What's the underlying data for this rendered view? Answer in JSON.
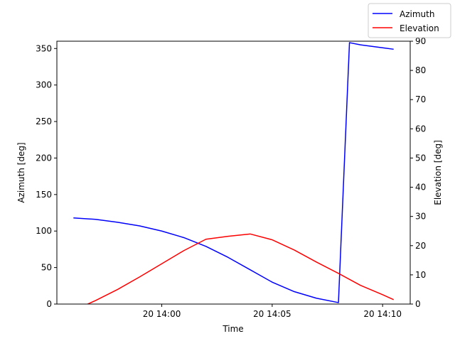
{
  "chart_data": {
    "type": "line",
    "title": "",
    "xlabel": "Time",
    "xlim": [
      "2000-01-20T13:55:15",
      "2000-01-20T14:11:15"
    ],
    "x_ticks": [
      {
        "t": "2000-01-20T14:00:00",
        "label": "20 14:00"
      },
      {
        "t": "2000-01-20T14:05:00",
        "label": "20 14:05"
      },
      {
        "t": "2000-01-20T14:10:00",
        "label": "20 14:10"
      }
    ],
    "y_left": {
      "label": "Azimuth [deg]",
      "lim": [
        0,
        360
      ],
      "ticks": [
        0,
        50,
        100,
        150,
        200,
        250,
        300,
        350
      ]
    },
    "y_right": {
      "label": "Elevation [deg]",
      "lim": [
        0,
        90
      ],
      "ticks": [
        0,
        10,
        20,
        30,
        40,
        50,
        60,
        70,
        80,
        90
      ]
    },
    "legend_position": "top-right (outside axes)",
    "series": [
      {
        "name": "Azimuth",
        "axis": "left",
        "color": "#0000ff",
        "points": [
          [
            "2000-01-20T13:56:00",
            118
          ],
          [
            "2000-01-20T13:57:00",
            116
          ],
          [
            "2000-01-20T13:58:00",
            112
          ],
          [
            "2000-01-20T13:59:00",
            107
          ],
          [
            "2000-01-20T14:00:00",
            100
          ],
          [
            "2000-01-20T14:01:00",
            91
          ],
          [
            "2000-01-20T14:02:00",
            79
          ],
          [
            "2000-01-20T14:03:00",
            64
          ],
          [
            "2000-01-20T14:04:00",
            47
          ],
          [
            "2000-01-20T14:05:00",
            30
          ],
          [
            "2000-01-20T14:06:00",
            17
          ],
          [
            "2000-01-20T14:07:00",
            8
          ],
          [
            "2000-01-20T14:08:00",
            2
          ],
          [
            "2000-01-20T14:08:30",
            358
          ],
          [
            "2000-01-20T14:09:00",
            355
          ],
          [
            "2000-01-20T14:10:00",
            351
          ],
          [
            "2000-01-20T14:10:30",
            349
          ]
        ]
      },
      {
        "name": "Elevation",
        "axis": "right",
        "color": "#ff0000",
        "points": [
          [
            "2000-01-20T13:56:30",
            -0.5
          ],
          [
            "2000-01-20T13:57:00",
            1.2
          ],
          [
            "2000-01-20T13:58:00",
            5
          ],
          [
            "2000-01-20T13:59:00",
            9.3
          ],
          [
            "2000-01-20T14:00:00",
            13.8
          ],
          [
            "2000-01-20T14:01:00",
            18.3
          ],
          [
            "2000-01-20T14:02:00",
            22.2
          ],
          [
            "2000-01-20T14:03:00",
            23.2
          ],
          [
            "2000-01-20T14:04:00",
            24
          ],
          [
            "2000-01-20T14:05:00",
            22
          ],
          [
            "2000-01-20T14:06:00",
            18.5
          ],
          [
            "2000-01-20T14:07:00",
            14.4
          ],
          [
            "2000-01-20T14:08:00",
            10.5
          ],
          [
            "2000-01-20T14:09:00",
            6.4
          ],
          [
            "2000-01-20T14:10:00",
            3.2
          ],
          [
            "2000-01-20T14:10:30",
            1.5
          ]
        ]
      }
    ]
  }
}
